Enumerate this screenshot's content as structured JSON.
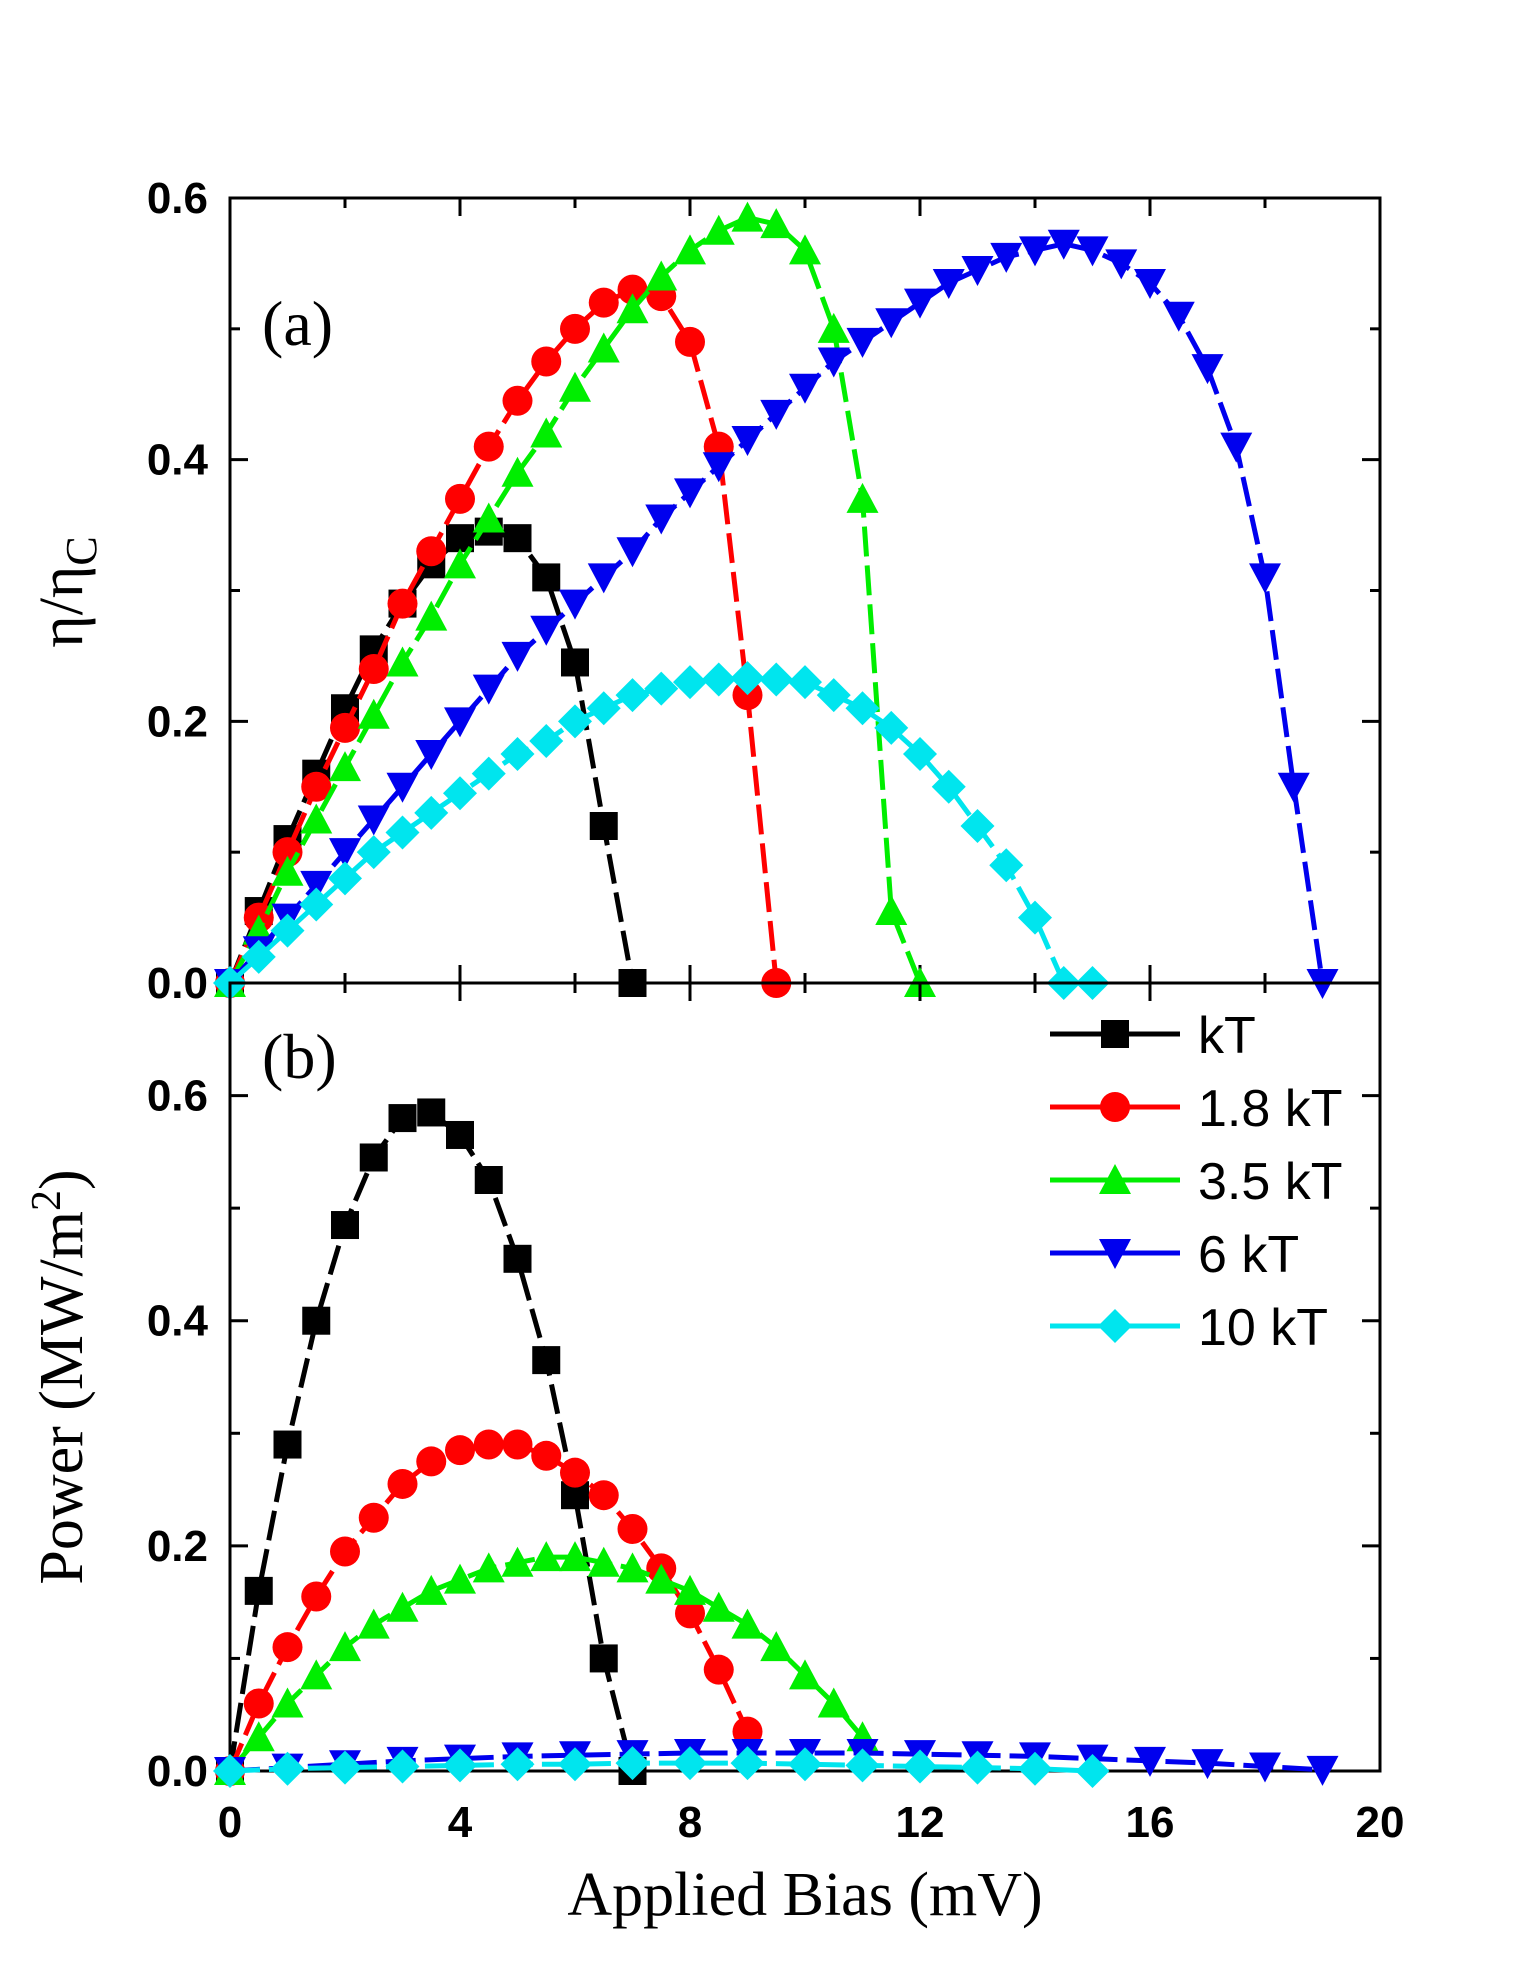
{
  "chart_data": [
    {
      "type": "line",
      "panel_label": "(a)",
      "ylabel": "η/η",
      "ylabel_sub": "C",
      "xlabel": "",
      "xlim": [
        0,
        20
      ],
      "ylim": [
        0,
        0.6
      ],
      "yticks": [
        "0.0",
        "0.2",
        "0.4",
        "0.6"
      ],
      "grid": false,
      "series": [
        {
          "name": "kT",
          "color": "#000000",
          "marker": "square",
          "x": [
            0,
            0.5,
            1,
            1.5,
            2,
            2.5,
            3,
            3.5,
            4,
            4.5,
            5,
            5.5,
            6,
            6.5,
            7
          ],
          "y": [
            0,
            0.055,
            0.11,
            0.16,
            0.21,
            0.255,
            0.29,
            0.32,
            0.34,
            0.345,
            0.34,
            0.31,
            0.245,
            0.12,
            0
          ]
        },
        {
          "name": "1.8 kT",
          "color": "#ff0000",
          "marker": "circle",
          "x": [
            0,
            0.5,
            1,
            1.5,
            2,
            2.5,
            3,
            3.5,
            4,
            4.5,
            5,
            5.5,
            6,
            6.5,
            7,
            7.5,
            8,
            8.5,
            9,
            9.5
          ],
          "y": [
            0,
            0.05,
            0.1,
            0.15,
            0.195,
            0.24,
            0.29,
            0.33,
            0.37,
            0.41,
            0.445,
            0.475,
            0.5,
            0.52,
            0.53,
            0.525,
            0.49,
            0.41,
            0.22,
            0
          ]
        },
        {
          "name": "3.5 kT",
          "color": "#00ee00",
          "marker": "triangle-up",
          "x": [
            0,
            0.5,
            1,
            1.5,
            2,
            2.5,
            3,
            3.5,
            4,
            4.5,
            5,
            5.5,
            6,
            6.5,
            7,
            7.5,
            8,
            8.5,
            9,
            9.5,
            10,
            10.5,
            11,
            11.5,
            12
          ],
          "y": [
            0,
            0.04,
            0.085,
            0.125,
            0.165,
            0.205,
            0.245,
            0.28,
            0.32,
            0.355,
            0.39,
            0.42,
            0.455,
            0.485,
            0.515,
            0.54,
            0.56,
            0.575,
            0.585,
            0.58,
            0.56,
            0.5,
            0.37,
            0.055,
            0
          ]
        },
        {
          "name": "6 kT",
          "color": "#0000ee",
          "marker": "triangle-down",
          "x": [
            0,
            0.5,
            1,
            1.5,
            2,
            2.5,
            3,
            3.5,
            4,
            4.5,
            5,
            5.5,
            6,
            6.5,
            7,
            7.5,
            8,
            8.5,
            9,
            9.5,
            10,
            10.5,
            11,
            11.5,
            12,
            12.5,
            13,
            13.5,
            14,
            14.5,
            15,
            15.5,
            16,
            16.5,
            17,
            17.5,
            18,
            18.5,
            19
          ],
          "y": [
            0,
            0.025,
            0.05,
            0.075,
            0.1,
            0.125,
            0.15,
            0.175,
            0.2,
            0.225,
            0.25,
            0.27,
            0.29,
            0.31,
            0.33,
            0.355,
            0.375,
            0.395,
            0.415,
            0.435,
            0.455,
            0.475,
            0.49,
            0.505,
            0.52,
            0.535,
            0.545,
            0.555,
            0.56,
            0.565,
            0.56,
            0.55,
            0.535,
            0.51,
            0.47,
            0.41,
            0.31,
            0.15,
            0
          ]
        },
        {
          "name": "10 kT",
          "color": "#00e5ee",
          "marker": "diamond",
          "x": [
            0,
            0.5,
            1,
            1.5,
            2,
            2.5,
            3,
            3.5,
            4,
            4.5,
            5,
            5.5,
            6,
            6.5,
            7,
            7.5,
            8,
            8.5,
            9,
            9.5,
            10,
            10.5,
            11,
            11.5,
            12,
            12.5,
            13,
            13.5,
            14,
            14.5,
            15
          ],
          "y": [
            0,
            0.02,
            0.04,
            0.06,
            0.08,
            0.1,
            0.115,
            0.13,
            0.145,
            0.16,
            0.175,
            0.185,
            0.2,
            0.21,
            0.22,
            0.225,
            0.23,
            0.232,
            0.233,
            0.232,
            0.23,
            0.22,
            0.21,
            0.195,
            0.175,
            0.15,
            0.12,
            0.09,
            0.05,
            0,
            0
          ]
        }
      ]
    },
    {
      "type": "line",
      "panel_label": "(b)",
      "ylabel": "Power (MW/m",
      "ylabel_sup": "2",
      "ylabel_end": ")",
      "xlabel": "Applied Bias (mV)",
      "xlim": [
        0,
        20
      ],
      "ylim": [
        0,
        0.7
      ],
      "xticks": [
        "0",
        "4",
        "8",
        "12",
        "16",
        "20"
      ],
      "yticks": [
        "0.0",
        "0.2",
        "0.4",
        "0.6"
      ],
      "grid": false,
      "legend_position": "top-right",
      "series": [
        {
          "name": "kT",
          "color": "#000000",
          "marker": "square",
          "x": [
            0,
            0.5,
            1,
            1.5,
            2,
            2.5,
            3,
            3.5,
            4,
            4.5,
            5,
            5.5,
            6,
            6.5,
            7
          ],
          "y": [
            0,
            0.16,
            0.29,
            0.4,
            0.485,
            0.545,
            0.58,
            0.585,
            0.565,
            0.525,
            0.455,
            0.365,
            0.245,
            0.1,
            0
          ]
        },
        {
          "name": "1.8 kT",
          "color": "#ff0000",
          "marker": "circle",
          "x": [
            0,
            0.5,
            1,
            1.5,
            2,
            2.5,
            3,
            3.5,
            4,
            4.5,
            5,
            5.5,
            6,
            6.5,
            7,
            7.5,
            8,
            8.5,
            9
          ],
          "y": [
            0,
            0.06,
            0.11,
            0.155,
            0.195,
            0.225,
            0.255,
            0.275,
            0.285,
            0.29,
            0.29,
            0.28,
            0.265,
            0.245,
            0.215,
            0.18,
            0.14,
            0.09,
            0.035
          ]
        },
        {
          "name": "3.5 kT",
          "color": "#00ee00",
          "marker": "triangle-up",
          "x": [
            0,
            0.5,
            1,
            1.5,
            2,
            2.5,
            3,
            3.5,
            4,
            4.5,
            5,
            5.5,
            6,
            6.5,
            7,
            7.5,
            8,
            8.5,
            9,
            9.5,
            10,
            10.5,
            11
          ],
          "y": [
            0,
            0.03,
            0.06,
            0.085,
            0.11,
            0.13,
            0.145,
            0.16,
            0.17,
            0.18,
            0.185,
            0.19,
            0.19,
            0.185,
            0.18,
            0.17,
            0.16,
            0.145,
            0.13,
            0.11,
            0.085,
            0.06,
            0.03
          ]
        },
        {
          "name": "6 kT",
          "color": "#0000ee",
          "marker": "triangle-down",
          "x": [
            0,
            1,
            2,
            3,
            4,
            5,
            6,
            7,
            8,
            9,
            10,
            11,
            12,
            13,
            14,
            15,
            16,
            17,
            18,
            19
          ],
          "y": [
            0,
            0.003,
            0.006,
            0.009,
            0.011,
            0.013,
            0.014,
            0.015,
            0.016,
            0.016,
            0.016,
            0.016,
            0.015,
            0.014,
            0.013,
            0.011,
            0.009,
            0.007,
            0.004,
            0.001
          ]
        },
        {
          "name": "10 kT",
          "color": "#00e5ee",
          "marker": "diamond",
          "x": [
            0,
            1,
            2,
            3,
            4,
            5,
            6,
            7,
            8,
            9,
            10,
            11,
            12,
            13,
            14,
            15
          ],
          "y": [
            0,
            0.002,
            0.003,
            0.004,
            0.005,
            0.006,
            0.006,
            0.007,
            0.007,
            0.007,
            0.006,
            0.005,
            0.004,
            0.003,
            0.002,
            0
          ]
        }
      ]
    }
  ]
}
